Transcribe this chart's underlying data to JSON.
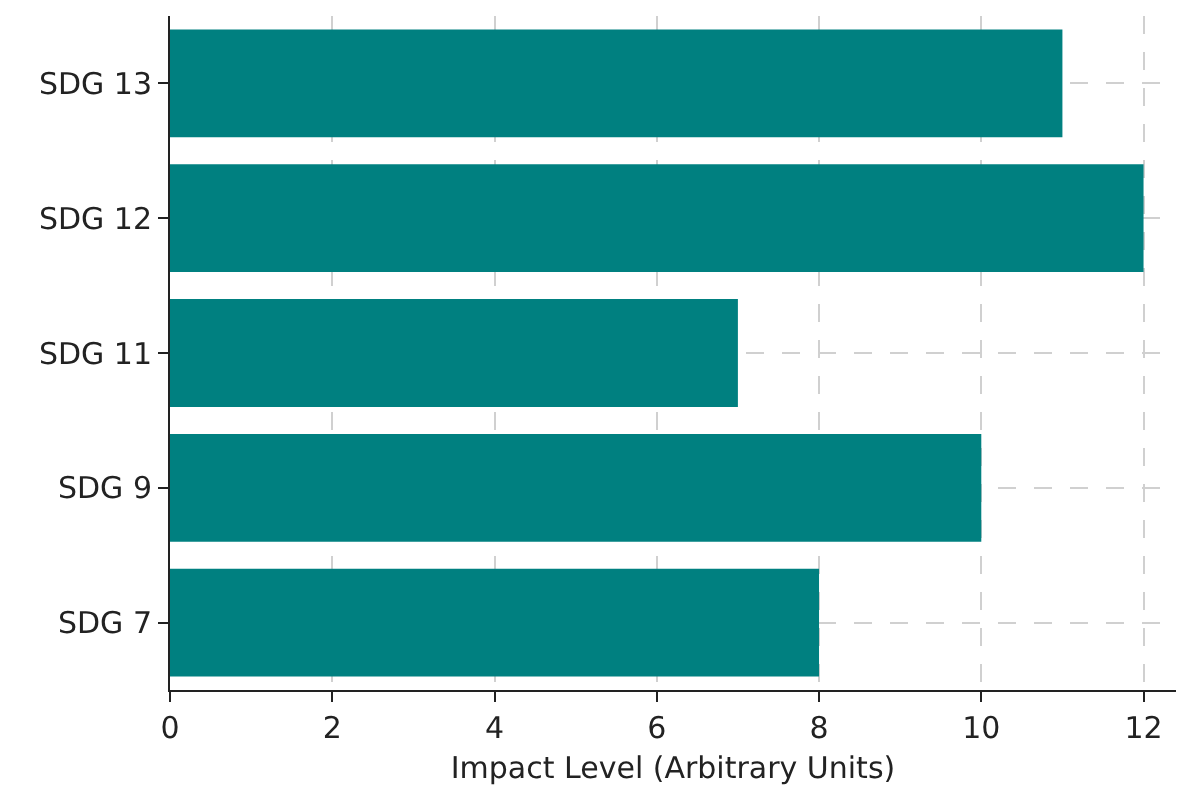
{
  "chart_data": {
    "type": "bar",
    "orientation": "horizontal",
    "xlabel": "Impact Level (Arbitrary Units)",
    "categories": [
      "SDG 13",
      "SDG 12",
      "SDG 11",
      "SDG 9",
      "SDG 7"
    ],
    "values": [
      11,
      12,
      7,
      10,
      8
    ],
    "color": "#008080",
    "xlim": [
      0,
      12.4
    ],
    "xticks": [
      0,
      2,
      4,
      6,
      8,
      10,
      12
    ],
    "grid": true
  }
}
